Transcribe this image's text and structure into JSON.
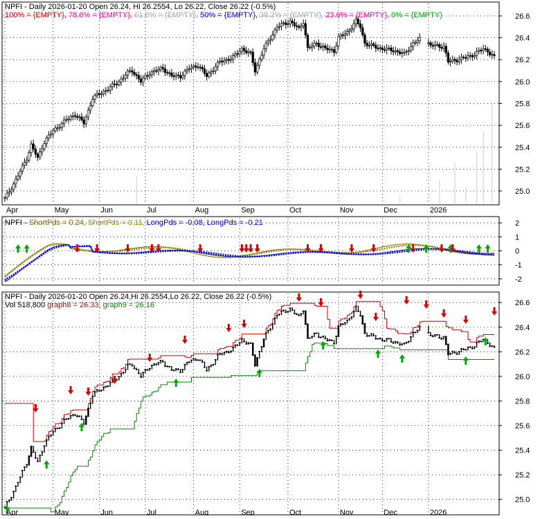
{
  "chart_data": [
    {
      "type": "candlestick",
      "title": "NPFI - Daily 2026-01-20 Open 26.24, Hi 26.2554, Lo 26.22, Close 26.22 (-0.5%)",
      "fib_legend": [
        {
          "label": "100% = {EMPTY},",
          "color": "#e00000"
        },
        {
          "label": "78.6% = {EMPTY},",
          "color": "#ff00aa"
        },
        {
          "label": "61.8% = {EMPTY},",
          "color": "#99aacc"
        },
        {
          "label": "50% = {EMPTY},",
          "color": "#0000dd"
        },
        {
          "label": "38.2% = {EMPTY},",
          "color": "#99aacc"
        },
        {
          "label": "23.6% = {EMPTY},",
          "color": "#ff00aa"
        },
        {
          "label": "0% = {EMPTY}",
          "color": "#00aa00"
        }
      ],
      "x_ticks": [
        "Apr",
        "May",
        "Jun",
        "Jul",
        "Aug",
        "Sep",
        "Oct",
        "Nov",
        "Dec",
        "2026"
      ],
      "y_ticks": [
        "26.6",
        "26.4",
        "26.2",
        "26.0",
        "25.8",
        "25.6",
        "25.4",
        "25.2",
        "25.0"
      ],
      "ylim": [
        24.88,
        26.72
      ],
      "grid": true,
      "anchors": [
        [
          0,
          24.93
        ],
        [
          5,
          25.1
        ],
        [
          10,
          25.3
        ],
        [
          12,
          25.42
        ],
        [
          15,
          25.3
        ],
        [
          18,
          25.45
        ],
        [
          22,
          25.55
        ],
        [
          28,
          25.65
        ],
        [
          32,
          25.7
        ],
        [
          36,
          25.62
        ],
        [
          40,
          25.85
        ],
        [
          46,
          25.92
        ],
        [
          52,
          26.0
        ],
        [
          56,
          26.08
        ],
        [
          58,
          26.1
        ],
        [
          62,
          26.0
        ],
        [
          66,
          26.08
        ],
        [
          72,
          26.12
        ],
        [
          76,
          26.05
        ],
        [
          80,
          26.05
        ],
        [
          84,
          26.12
        ],
        [
          88,
          26.15
        ],
        [
          92,
          26.05
        ],
        [
          98,
          26.18
        ],
        [
          104,
          26.22
        ],
        [
          108,
          26.3
        ],
        [
          112,
          26.25
        ],
        [
          114,
          26.1
        ],
        [
          118,
          26.3
        ],
        [
          124,
          26.5
        ],
        [
          130,
          26.55
        ],
        [
          134,
          26.48
        ],
        [
          136,
          26.55
        ],
        [
          138,
          26.3
        ],
        [
          142,
          26.35
        ],
        [
          146,
          26.3
        ],
        [
          150,
          26.28
        ],
        [
          152,
          26.4
        ],
        [
          156,
          26.45
        ],
        [
          160,
          26.55
        ],
        [
          162,
          26.5
        ],
        [
          164,
          26.35
        ],
        [
          168,
          26.32
        ],
        [
          172,
          26.3
        ],
        [
          178,
          26.28
        ],
        [
          182,
          26.25
        ],
        [
          186,
          26.35
        ],
        [
          190,
          26.4
        ],
        [
          194,
          26.33
        ],
        [
          200,
          26.32
        ],
        [
          202,
          26.18
        ],
        [
          206,
          26.2
        ],
        [
          210,
          26.22
        ],
        [
          214,
          26.25
        ],
        [
          218,
          26.3
        ],
        [
          220,
          26.28
        ],
        [
          223,
          26.22
        ]
      ]
    },
    {
      "type": "line",
      "title": "NPFI - ShortPds = 0.24, ShortPds = 0.11, LongPds = -0.08, LongPds = -0.21",
      "series": [
        {
          "name": "ShortPds = 0.24,",
          "color": "#806000",
          "values": []
        },
        {
          "name": "ShortPds = 0.11,",
          "color": "#998800",
          "values": []
        },
        {
          "name": "LongPds = -0.08,",
          "color": "#0000dd",
          "values": []
        },
        {
          "name": "LongPds = -0.21",
          "color": "#0000dd",
          "values": []
        }
      ],
      "y_ticks": [
        "2",
        "1",
        "0",
        "-1",
        "-2"
      ],
      "ylim": [
        -2.4,
        2.4
      ]
    },
    {
      "type": "candlestick",
      "title": "NPFI - Daily 2026-01-20 Open 26.24,Hi 26.2554,Lo 26.22, Close 26.22 (-0.5%)",
      "legend": [
        {
          "label": "Vol 518,800",
          "color": "#000000"
        },
        {
          "label": "graph8 = 26.33,",
          "color": "#cc0000"
        },
        {
          "label": "graph9 = 26.16",
          "color": "#008800"
        }
      ],
      "x_ticks": [
        "Apr",
        "May",
        "Jun",
        "Jul",
        "Aug",
        "Sep",
        "Oct",
        "Nov",
        "Dec",
        "2026"
      ],
      "y_ticks": [
        "26.6",
        "26.4",
        "26.2",
        "26.0",
        "25.8",
        "25.6",
        "25.4",
        "25.2",
        "25.0"
      ],
      "ylim": [
        24.88,
        26.68
      ],
      "grid": true
    }
  ]
}
